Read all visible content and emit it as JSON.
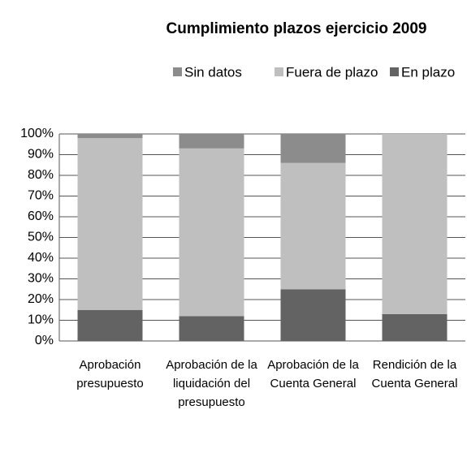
{
  "chart_data": {
    "type": "stacked_bar",
    "title": "Cumplimiento plazos ejercicio 2009",
    "categories": [
      "Aprobación presupuesto",
      "Aprobación de la liquidación del presupuesto",
      "Aprobación de la Cuenta General",
      "Rendición de la Cuenta General"
    ],
    "series": [
      {
        "name": "En plazo",
        "color": "#636363",
        "values": [
          15,
          12,
          25,
          13
        ]
      },
      {
        "name": "Fuera de plazo",
        "color": "#bfbfbf",
        "values": [
          83,
          81,
          61,
          87
        ]
      },
      {
        "name": "Sin datos",
        "color": "#8c8c8c",
        "values": [
          2,
          7,
          14,
          0
        ]
      }
    ],
    "ylim": [
      0,
      100
    ],
    "yticks": [
      {
        "value": 0,
        "label": "0%"
      },
      {
        "value": 10,
        "label": "10%"
      },
      {
        "value": 20,
        "label": "20%"
      },
      {
        "value": 30,
        "label": "30%"
      },
      {
        "value": 40,
        "label": "40%"
      },
      {
        "value": 50,
        "label": "50%"
      },
      {
        "value": 60,
        "label": "60%"
      },
      {
        "value": 70,
        "label": "70%"
      },
      {
        "value": 80,
        "label": "80%"
      },
      {
        "value": 90,
        "label": "90%"
      },
      {
        "value": 100,
        "label": "100%"
      }
    ],
    "grid": true,
    "legend": "top"
  }
}
